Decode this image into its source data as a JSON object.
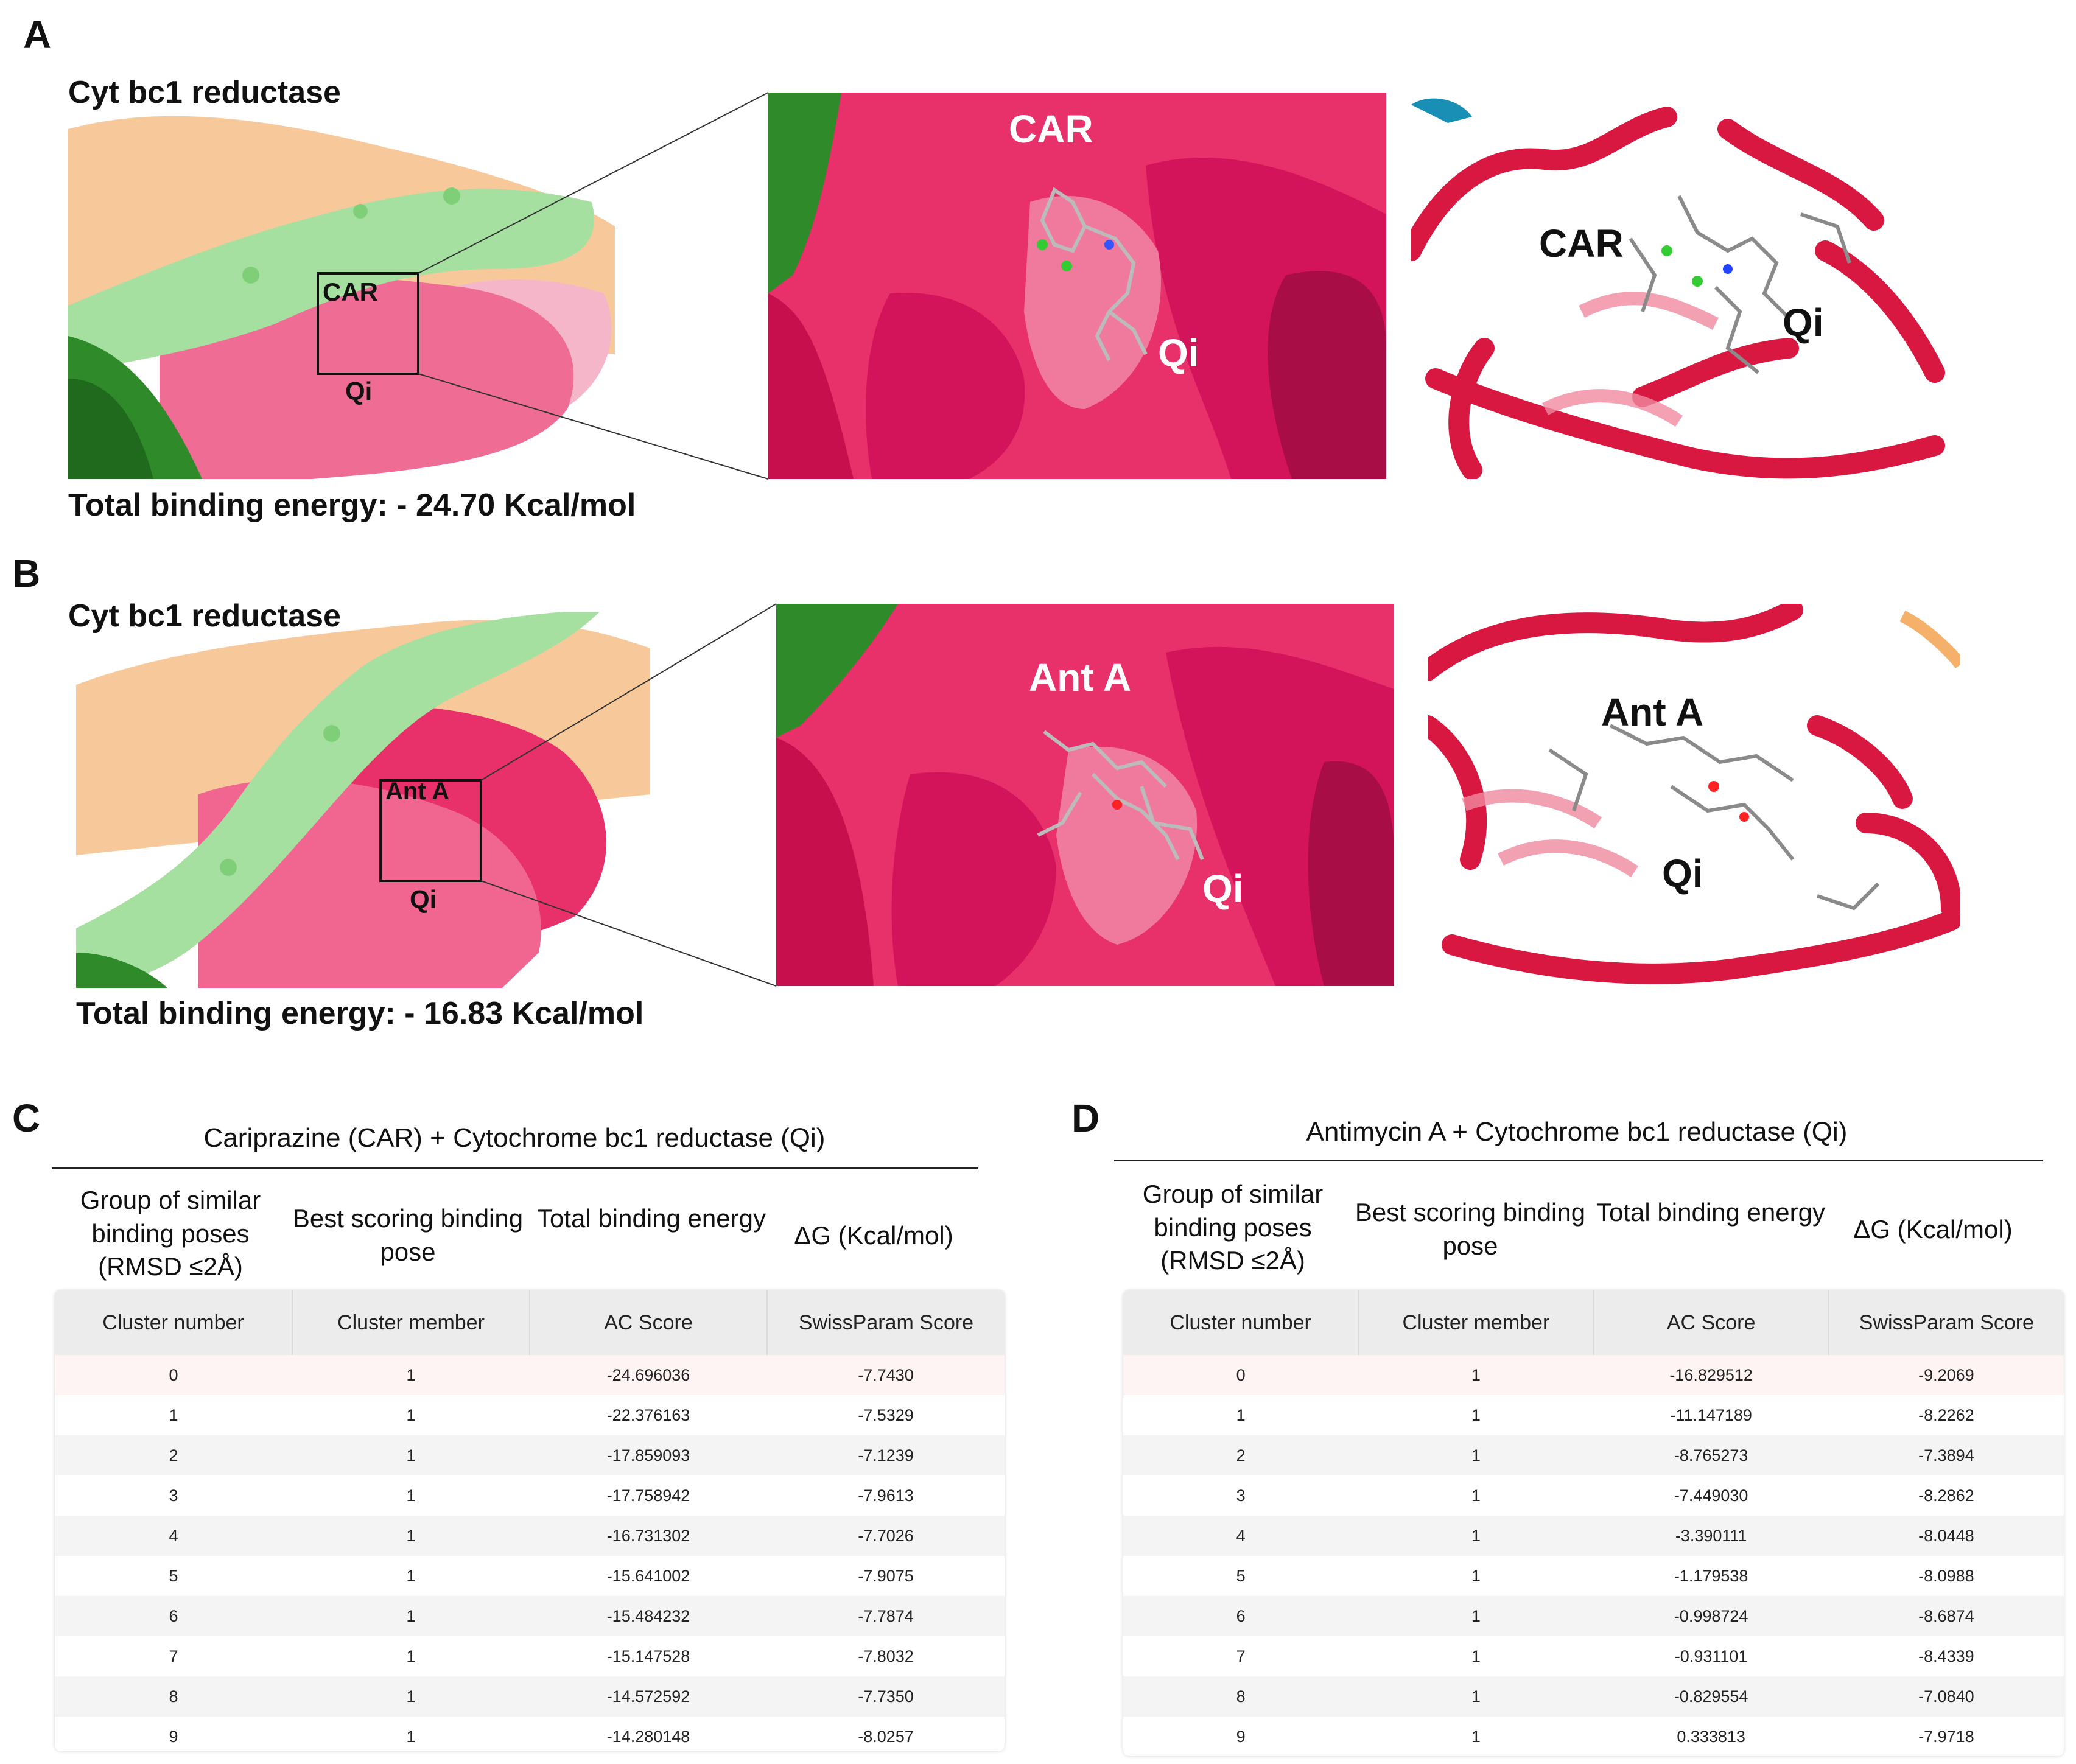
{
  "figure": {
    "panels": {
      "A": {
        "letter": "A",
        "title": "Cyt bc1 reductase",
        "box_ligand_label": "CAR",
        "box_site_label": "Qi",
        "zoom_ligand_label": "CAR",
        "zoom_site_label": "Qi",
        "ribbon_ligand_label": "CAR",
        "ribbon_site_label": "Qi",
        "energy_text": "Total binding energy: - 24.70  Kcal/mol"
      },
      "B": {
        "letter": "B",
        "title": "Cyt bc1 reductase",
        "box_ligand_label": "Ant A",
        "box_site_label": "Qi",
        "zoom_ligand_label": "Ant A",
        "zoom_site_label": "Qi",
        "ribbon_ligand_label": "Ant A",
        "ribbon_site_label": "Qi",
        "energy_text": "Total binding energy:  - 16.83  Kcal/mol"
      }
    },
    "colors": {
      "surface_pink": "#e8306a",
      "surface_deep": "#d4145a",
      "light_green": "#a6e0a0",
      "dark_green": "#2f8a2a",
      "peach": "#f7c99a",
      "ribbon_red": "#d81840"
    },
    "tables": {
      "C": {
        "letter": "C",
        "title": "Cariprazine  (CAR) +  Cytochrome bc1 reductase (Qi)",
        "header_labels": [
          "Group of similar binding poses (RMSD ≤2Å)",
          "Best scoring binding pose",
          "Total binding energy",
          "ΔG (Kcal/mol)"
        ],
        "columns": [
          "Cluster number",
          "Cluster member",
          "AC Score",
          "SwissParam Score"
        ],
        "rows": [
          [
            "0",
            "1",
            "-24.696036",
            "-7.7430"
          ],
          [
            "1",
            "1",
            "-22.376163",
            "-7.5329"
          ],
          [
            "2",
            "1",
            "-17.859093",
            "-7.1239"
          ],
          [
            "3",
            "1",
            "-17.758942",
            "-7.9613"
          ],
          [
            "4",
            "1",
            "-16.731302",
            "-7.7026"
          ],
          [
            "5",
            "1",
            "-15.641002",
            "-7.9075"
          ],
          [
            "6",
            "1",
            "-15.484232",
            "-7.7874"
          ],
          [
            "7",
            "1",
            "-15.147528",
            "-7.8032"
          ],
          [
            "8",
            "1",
            "-14.572592",
            "-7.7350"
          ],
          [
            "9",
            "1",
            "-14.280148",
            "-8.0257"
          ]
        ]
      },
      "D": {
        "letter": "D",
        "title": "Antimycin A +  Cytochrome bc1 reductase (Qi)",
        "header_labels": [
          "Group of similar binding poses (RMSD ≤2Å)",
          "Best scoring binding pose",
          "Total binding energy",
          "ΔG (Kcal/mol)"
        ],
        "columns": [
          "Cluster number",
          "Cluster member",
          "AC Score",
          "SwissParam Score"
        ],
        "rows": [
          [
            "0",
            "1",
            "-16.829512",
            "-9.2069"
          ],
          [
            "1",
            "1",
            "-11.147189",
            "-8.2262"
          ],
          [
            "2",
            "1",
            "-8.765273",
            "-7.3894"
          ],
          [
            "3",
            "1",
            "-7.449030",
            "-8.2862"
          ],
          [
            "4",
            "1",
            "-3.390111",
            "-8.0448"
          ],
          [
            "5",
            "1",
            "-1.179538",
            "-8.0988"
          ],
          [
            "6",
            "1",
            "-0.998724",
            "-8.6874"
          ],
          [
            "7",
            "1",
            "-0.931101",
            "-8.4339"
          ],
          [
            "8",
            "1",
            "-0.829554",
            "-7.0840"
          ],
          [
            "9",
            "1",
            "0.333813",
            "-7.9718"
          ]
        ]
      }
    }
  }
}
